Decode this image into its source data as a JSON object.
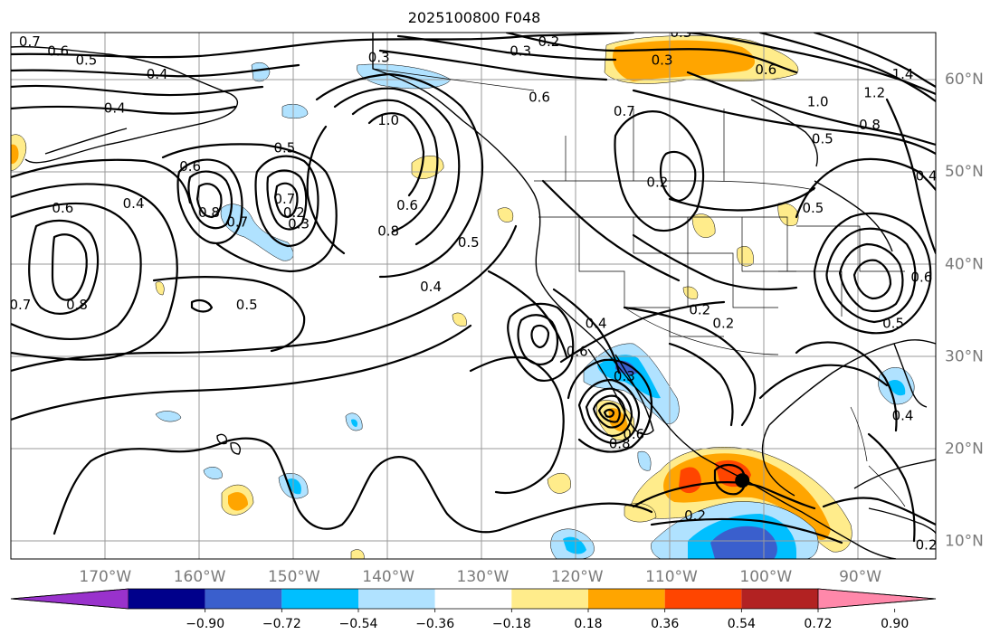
{
  "title": "2025100800 F048",
  "map": {
    "lon_range": [
      -180,
      -82
    ],
    "lat_range": [
      8,
      65
    ],
    "lon_ticks": [
      {
        "lon": -170,
        "label": "170°W"
      },
      {
        "lon": -160,
        "label": "160°W"
      },
      {
        "lon": -150,
        "label": "150°W"
      },
      {
        "lon": -140,
        "label": "140°W"
      },
      {
        "lon": -130,
        "label": "130°W"
      },
      {
        "lon": -120,
        "label": "120°W"
      },
      {
        "lon": -110,
        "label": "110°W"
      },
      {
        "lon": -100,
        "label": "100°W"
      },
      {
        "lon": -90,
        "label": "90°W"
      }
    ],
    "lat_ticks": [
      {
        "lat": 10,
        "label": "10°N"
      },
      {
        "lat": 20,
        "label": "20°N"
      },
      {
        "lat": 30,
        "label": "30°N"
      },
      {
        "lat": 40,
        "label": "40°N"
      },
      {
        "lat": 50,
        "label": "50°N"
      },
      {
        "lat": 60,
        "label": "60°N"
      }
    ],
    "gridlines": true
  },
  "colorbar": {
    "colors": [
      "#9932CC",
      "#00008B",
      "#3A5FCD",
      "#00BFFF",
      "#B0E2FF",
      "#FFFFFF",
      "#FFEC8B",
      "#FFA500",
      "#FF4500",
      "#B22222",
      "#FF88AA"
    ],
    "ticks": [
      "−0.90",
      "−0.72",
      "−0.54",
      "−0.36",
      "−0.18",
      "0.18",
      "0.36",
      "0.54",
      "0.72",
      "0.90"
    ],
    "extend": "both"
  },
  "contour_labels": [
    {
      "text": "0.7",
      "lon": -178,
      "lat": 64
    },
    {
      "text": "0.6",
      "lon": -175,
      "lat": 63
    },
    {
      "text": "0.5",
      "lon": -172,
      "lat": 62
    },
    {
      "text": "0.4",
      "lon": -164.5,
      "lat": 60.5
    },
    {
      "text": "0.4",
      "lon": -169,
      "lat": 56.8
    },
    {
      "text": "0.3",
      "lon": -141,
      "lat": 62.3
    },
    {
      "text": "0.3",
      "lon": -126,
      "lat": 63
    },
    {
      "text": "0.2",
      "lon": -123,
      "lat": 64
    },
    {
      "text": "0.3",
      "lon": -109,
      "lat": 65
    },
    {
      "text": "0.3",
      "lon": -111,
      "lat": 62
    },
    {
      "text": "0.6",
      "lon": -100,
      "lat": 61
    },
    {
      "text": "0.6",
      "lon": -124,
      "lat": 58
    },
    {
      "text": "0.7",
      "lon": -115,
      "lat": 56.5
    },
    {
      "text": "1.0",
      "lon": -94.5,
      "lat": 57.5
    },
    {
      "text": "1.2",
      "lon": -88.5,
      "lat": 58.5
    },
    {
      "text": "1.4",
      "lon": -85.5,
      "lat": 60.5
    },
    {
      "text": "0.8",
      "lon": -89,
      "lat": 55
    },
    {
      "text": "0.5",
      "lon": -94,
      "lat": 53.5
    },
    {
      "text": "0.4",
      "lon": -83,
      "lat": 49.5
    },
    {
      "text": "1.0",
      "lon": -140,
      "lat": 55.5
    },
    {
      "text": "0.5",
      "lon": -151,
      "lat": 52.5
    },
    {
      "text": "0.6",
      "lon": -161,
      "lat": 50.5
    },
    {
      "text": "0.8",
      "lon": -159,
      "lat": 45.5
    },
    {
      "text": "0.7",
      "lon": -151,
      "lat": 47
    },
    {
      "text": "0.7",
      "lon": -156,
      "lat": 44.5
    },
    {
      "text": "0.2",
      "lon": -150,
      "lat": 45.5
    },
    {
      "text": "0.3",
      "lon": -149.5,
      "lat": 44.3
    },
    {
      "text": "0.8",
      "lon": -140,
      "lat": 43.5
    },
    {
      "text": "0.6",
      "lon": -138,
      "lat": 46.3
    },
    {
      "text": "0.6",
      "lon": -174.5,
      "lat": 46
    },
    {
      "text": "0.4",
      "lon": -167,
      "lat": 46.5
    },
    {
      "text": "0.8",
      "lon": -173,
      "lat": 35.5
    },
    {
      "text": "0.7",
      "lon": -179,
      "lat": 35.5
    },
    {
      "text": "0.5",
      "lon": -155,
      "lat": 35.5
    },
    {
      "text": "0.4",
      "lon": -135.5,
      "lat": 37.5
    },
    {
      "text": "0.5",
      "lon": -131.5,
      "lat": 42.3
    },
    {
      "text": "0.2",
      "lon": -111.5,
      "lat": 48.8
    },
    {
      "text": "0.5",
      "lon": -95,
      "lat": 46
    },
    {
      "text": "0.2",
      "lon": -107,
      "lat": 35
    },
    {
      "text": "0.2",
      "lon": -104.5,
      "lat": 33.5
    },
    {
      "text": "0.4",
      "lon": -118,
      "lat": 33.5
    },
    {
      "text": "0.6",
      "lon": -120,
      "lat": 30.5
    },
    {
      "text": "0.6",
      "lon": -114,
      "lat": 21.5
    },
    {
      "text": "0.8",
      "lon": -115.5,
      "lat": 20.5
    },
    {
      "text": "0.3",
      "lon": -115,
      "lat": 27.8
    },
    {
      "text": "0.2",
      "lon": -107.5,
      "lat": 12.7
    },
    {
      "text": "0.4",
      "lon": -85.5,
      "lat": 23.5
    },
    {
      "text": "0.6",
      "lon": -83.5,
      "lat": 38.5
    },
    {
      "text": "0.5",
      "lon": -86.5,
      "lat": 33.5
    },
    {
      "text": "0.2",
      "lon": -83,
      "lat": 9.5
    }
  ],
  "cyclone_center": {
    "lon": -102.5,
    "lat": 16.5
  }
}
